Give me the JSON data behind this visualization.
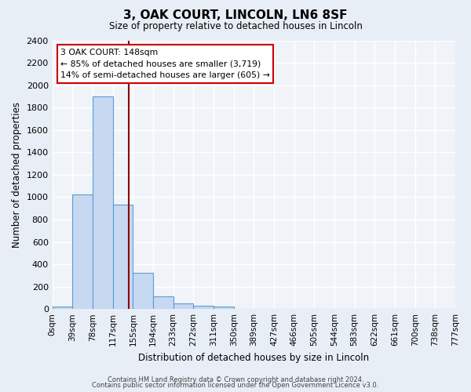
{
  "title": "3, OAK COURT, LINCOLN, LN6 8SF",
  "subtitle": "Size of property relative to detached houses in Lincoln",
  "xlabel": "Distribution of detached houses by size in Lincoln",
  "ylabel": "Number of detached properties",
  "footer_line1": "Contains HM Land Registry data © Crown copyright and database right 2024.",
  "footer_line2": "Contains public sector information licensed under the Open Government Licence v3.0.",
  "bin_labels": [
    "0sqm",
    "39sqm",
    "78sqm",
    "117sqm",
    "155sqm",
    "194sqm",
    "233sqm",
    "272sqm",
    "311sqm",
    "350sqm",
    "389sqm",
    "427sqm",
    "466sqm",
    "505sqm",
    "544sqm",
    "583sqm",
    "622sqm",
    "661sqm",
    "700sqm",
    "738sqm",
    "777sqm"
  ],
  "bar_values": [
    25,
    1025,
    1900,
    930,
    320,
    110,
    50,
    30,
    20,
    0,
    0,
    0,
    0,
    0,
    0,
    0,
    0,
    0,
    0,
    0
  ],
  "ylim": [
    0,
    2400
  ],
  "yticks": [
    0,
    200,
    400,
    600,
    800,
    1000,
    1200,
    1400,
    1600,
    1800,
    2000,
    2200,
    2400
  ],
  "bar_color": "#c6d9f0",
  "bar_edge_color": "#5b9bd5",
  "vline_x": 148,
  "vline_color": "#8b0000",
  "annotation_title": "3 OAK COURT: 148sqm",
  "annotation_line2": "← 85% of detached houses are smaller (3,719)",
  "annotation_line3": "14% of semi-detached houses are larger (605) →",
  "annotation_box_color": "#ffffff",
  "annotation_box_edge": "#cc0000",
  "bg_color": "#e8eef5",
  "plot_bg_color": "#f0f4f8",
  "grid_color": "#ffffff",
  "bin_width": 39
}
